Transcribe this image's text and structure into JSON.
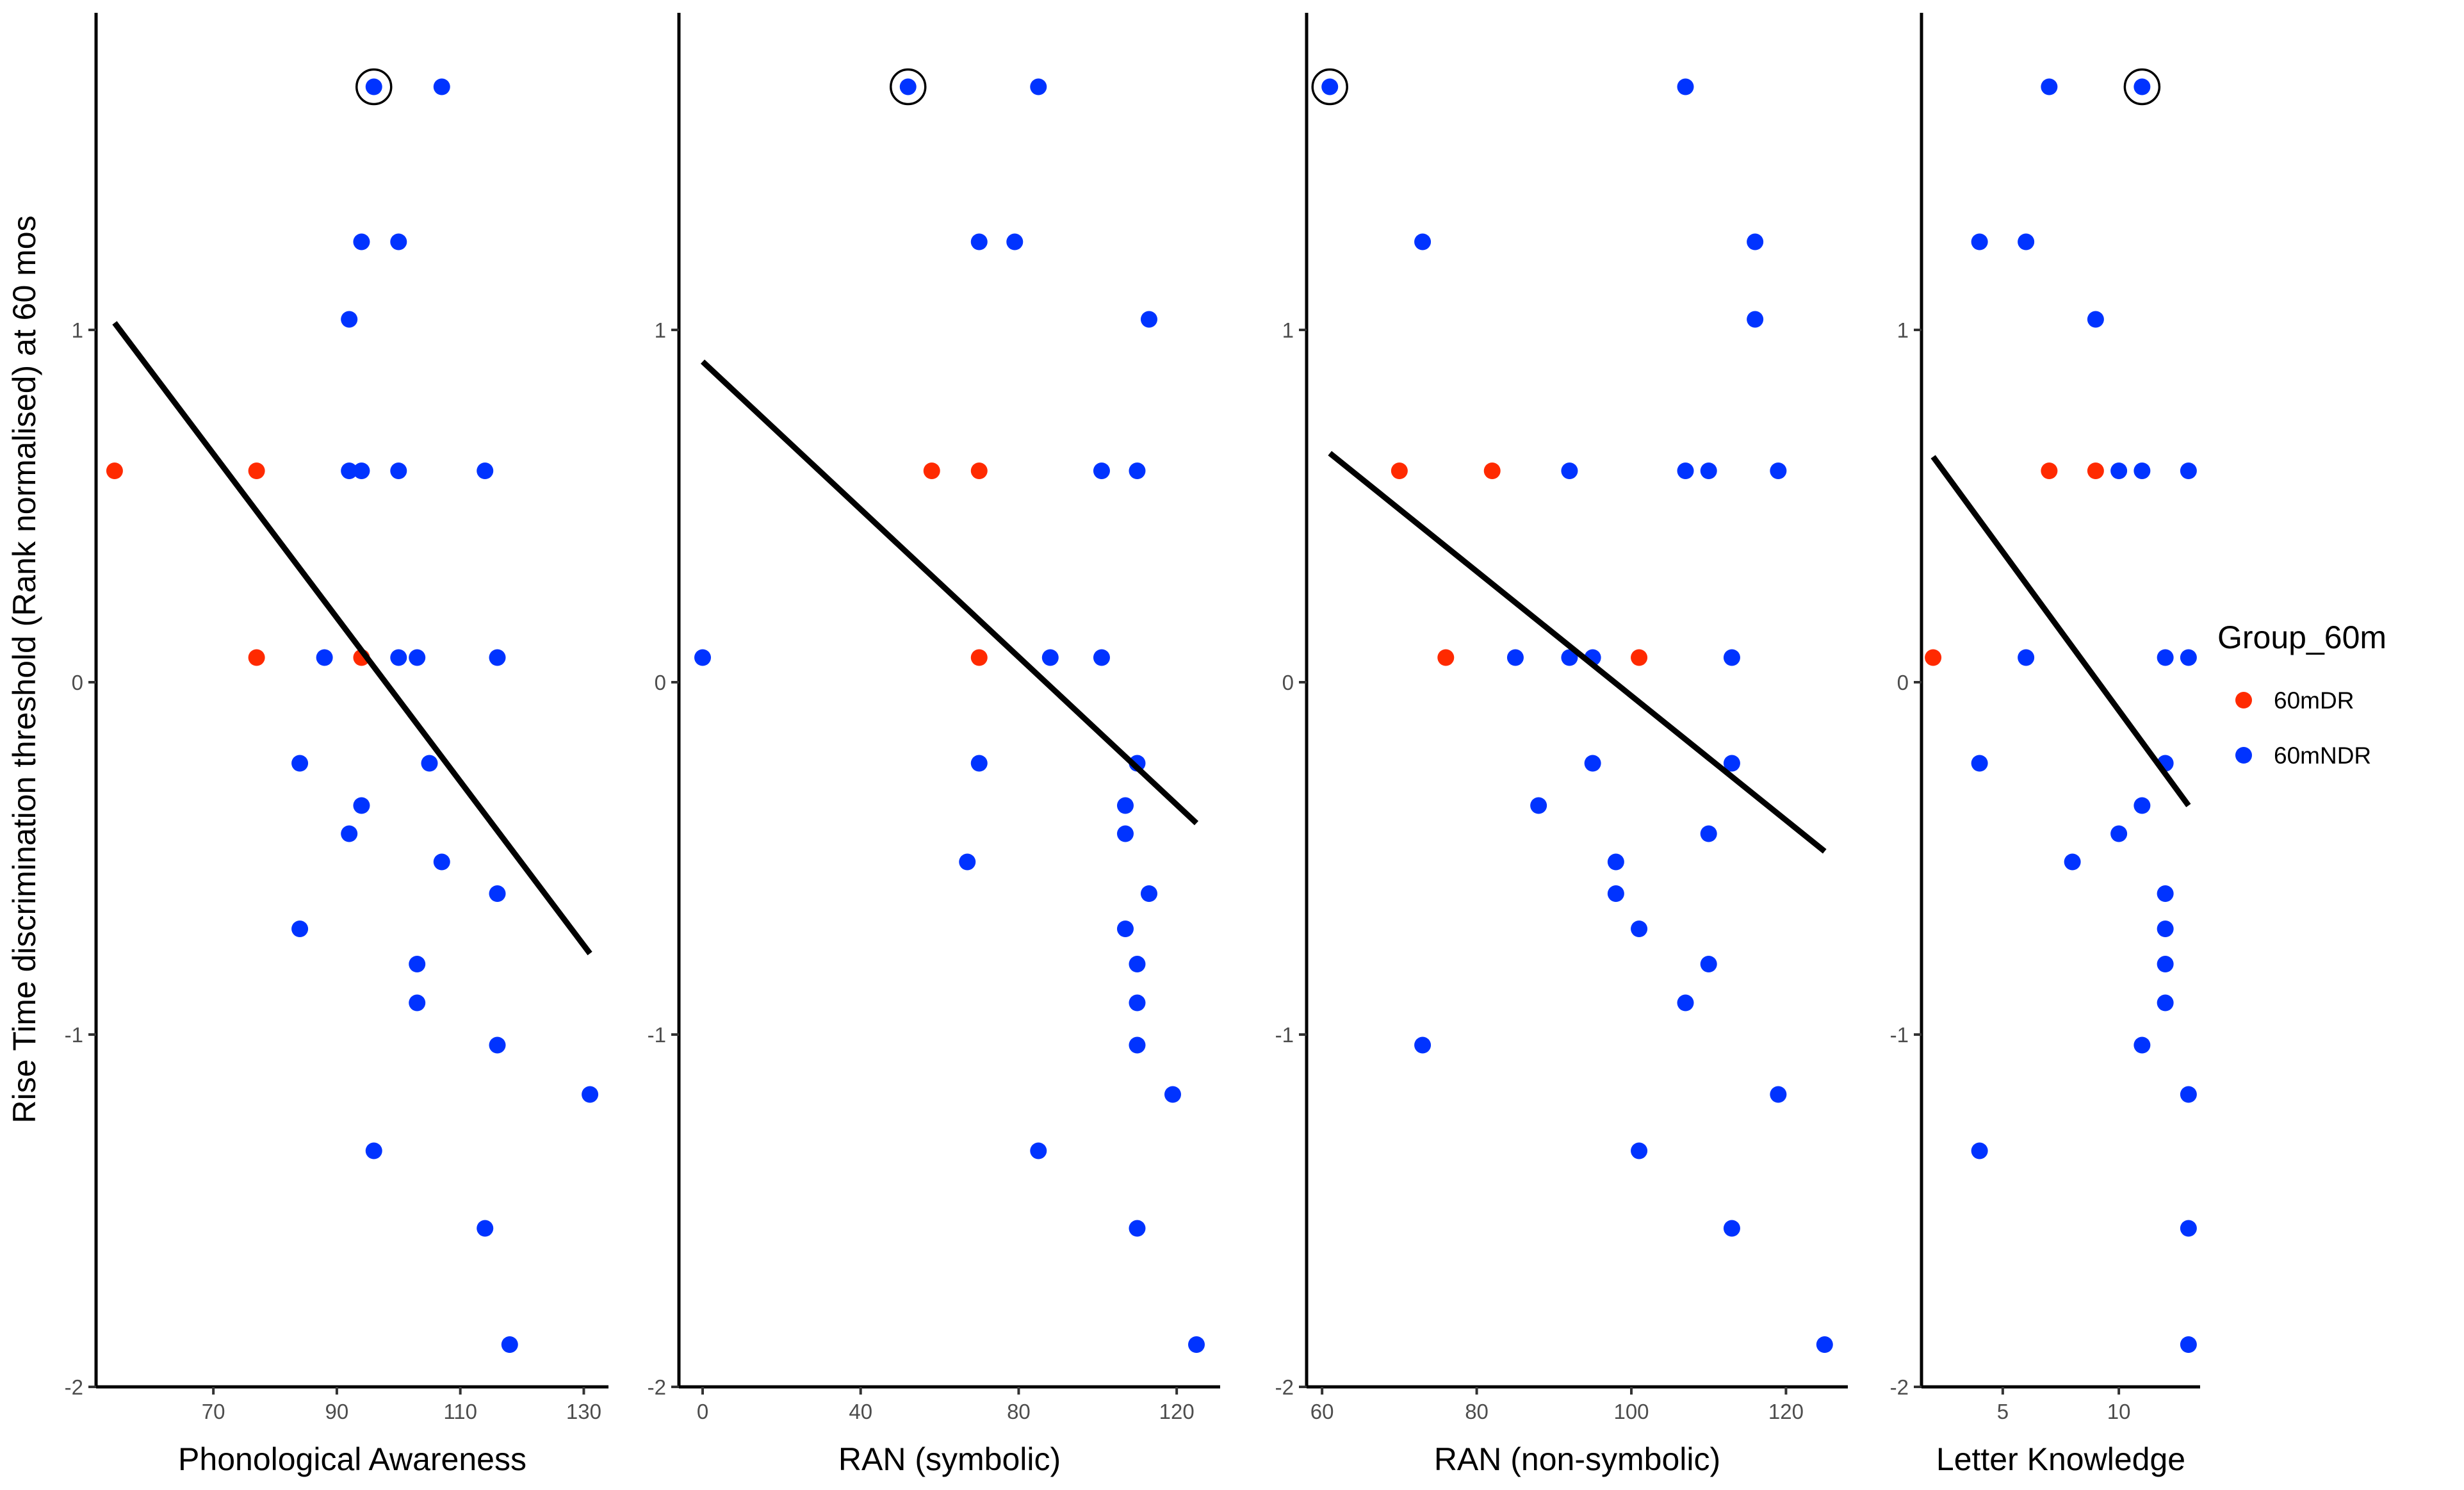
{
  "colors": {
    "60mDR": "#ff2a00",
    "60mNDR": "#0033ff",
    "axis": "#000000",
    "tick_text": "#4d4d4d"
  },
  "chart_data": {
    "type": "scatter",
    "ylabel": "Rise Time discrimination threshold (Rank normalised) at 60 mos",
    "legend": {
      "title": "Group_60m",
      "entries": [
        "60mDR",
        "60mNDR"
      ],
      "position": "right"
    },
    "ylim": [
      -2.0,
      1.9
    ],
    "yticks": [
      -2,
      -1,
      0,
      1
    ],
    "ytick_labels": [
      "-2",
      "-1",
      "0",
      "1"
    ],
    "panels": [
      {
        "xlabel": "Phonological Awareness",
        "xlim": [
          51,
          134
        ],
        "xticks": [
          70,
          90,
          110,
          130
        ],
        "xtick_labels": [
          "70",
          "90",
          "110",
          "130"
        ],
        "fit": {
          "x": [
            54,
            131
          ],
          "y": [
            1.02,
            -0.77
          ]
        },
        "highlight": {
          "x": 96,
          "y": 1.69
        },
        "points": [
          {
            "x": 54,
            "y": 0.6,
            "group": "60mDR"
          },
          {
            "x": 77,
            "y": 0.6,
            "group": "60mDR"
          },
          {
            "x": 77,
            "y": 0.07,
            "group": "60mDR"
          },
          {
            "x": 94,
            "y": 0.07,
            "group": "60mDR"
          },
          {
            "x": 96,
            "y": 1.69,
            "group": "60mNDR"
          },
          {
            "x": 107,
            "y": 1.69,
            "group": "60mNDR"
          },
          {
            "x": 94,
            "y": 1.25,
            "group": "60mNDR"
          },
          {
            "x": 100,
            "y": 1.25,
            "group": "60mNDR"
          },
          {
            "x": 92,
            "y": 1.03,
            "group": "60mNDR"
          },
          {
            "x": 92,
            "y": 0.6,
            "group": "60mNDR"
          },
          {
            "x": 94,
            "y": 0.6,
            "group": "60mNDR"
          },
          {
            "x": 100,
            "y": 0.6,
            "group": "60mNDR"
          },
          {
            "x": 114,
            "y": 0.6,
            "group": "60mNDR"
          },
          {
            "x": 88,
            "y": 0.07,
            "group": "60mNDR"
          },
          {
            "x": 100,
            "y": 0.07,
            "group": "60mNDR"
          },
          {
            "x": 103,
            "y": 0.07,
            "group": "60mNDR"
          },
          {
            "x": 116,
            "y": 0.07,
            "group": "60mNDR"
          },
          {
            "x": 84,
            "y": -0.23,
            "group": "60mNDR"
          },
          {
            "x": 105,
            "y": -0.23,
            "group": "60mNDR"
          },
          {
            "x": 94,
            "y": -0.35,
            "group": "60mNDR"
          },
          {
            "x": 92,
            "y": -0.43,
            "group": "60mNDR"
          },
          {
            "x": 107,
            "y": -0.51,
            "group": "60mNDR"
          },
          {
            "x": 116,
            "y": -0.6,
            "group": "60mNDR"
          },
          {
            "x": 84,
            "y": -0.7,
            "group": "60mNDR"
          },
          {
            "x": 103,
            "y": -0.8,
            "group": "60mNDR"
          },
          {
            "x": 103,
            "y": -0.91,
            "group": "60mNDR"
          },
          {
            "x": 116,
            "y": -1.03,
            "group": "60mNDR"
          },
          {
            "x": 131,
            "y": -1.17,
            "group": "60mNDR"
          },
          {
            "x": 96,
            "y": -1.33,
            "group": "60mNDR"
          },
          {
            "x": 114,
            "y": -1.55,
            "group": "60mNDR"
          },
          {
            "x": 118,
            "y": -1.88,
            "group": "60mNDR"
          }
        ]
      },
      {
        "xlabel": "RAN (symbolic)",
        "xlim": [
          -6,
          131
        ],
        "xticks": [
          0,
          40,
          80,
          120
        ],
        "xtick_labels": [
          "0",
          "40",
          "80",
          "120"
        ],
        "fit": {
          "x": [
            0,
            125
          ],
          "y": [
            0.91,
            -0.4
          ]
        },
        "highlight": {
          "x": 52,
          "y": 1.69
        },
        "points": [
          {
            "x": 58,
            "y": 0.6,
            "group": "60mDR"
          },
          {
            "x": 70,
            "y": 0.6,
            "group": "60mDR"
          },
          {
            "x": 70,
            "y": 0.07,
            "group": "60mDR"
          },
          {
            "x": 52,
            "y": 1.69,
            "group": "60mNDR"
          },
          {
            "x": 85,
            "y": 1.69,
            "group": "60mNDR"
          },
          {
            "x": 70,
            "y": 1.25,
            "group": "60mNDR"
          },
          {
            "x": 79,
            "y": 1.25,
            "group": "60mNDR"
          },
          {
            "x": 113,
            "y": 1.03,
            "group": "60mNDR"
          },
          {
            "x": 101,
            "y": 0.6,
            "group": "60mNDR"
          },
          {
            "x": 110,
            "y": 0.6,
            "group": "60mNDR"
          },
          {
            "x": 0,
            "y": 0.07,
            "group": "60mNDR"
          },
          {
            "x": 88,
            "y": 0.07,
            "group": "60mNDR"
          },
          {
            "x": 101,
            "y": 0.07,
            "group": "60mNDR"
          },
          {
            "x": 70,
            "y": -0.23,
            "group": "60mNDR"
          },
          {
            "x": 110,
            "y": -0.23,
            "group": "60mNDR"
          },
          {
            "x": 107,
            "y": -0.35,
            "group": "60mNDR"
          },
          {
            "x": 107,
            "y": -0.43,
            "group": "60mNDR"
          },
          {
            "x": 67,
            "y": -0.51,
            "group": "60mNDR"
          },
          {
            "x": 113,
            "y": -0.6,
            "group": "60mNDR"
          },
          {
            "x": 107,
            "y": -0.7,
            "group": "60mNDR"
          },
          {
            "x": 110,
            "y": -0.8,
            "group": "60mNDR"
          },
          {
            "x": 110,
            "y": -0.91,
            "group": "60mNDR"
          },
          {
            "x": 110,
            "y": -1.03,
            "group": "60mNDR"
          },
          {
            "x": 119,
            "y": -1.17,
            "group": "60mNDR"
          },
          {
            "x": 85,
            "y": -1.33,
            "group": "60mNDR"
          },
          {
            "x": 110,
            "y": -1.55,
            "group": "60mNDR"
          },
          {
            "x": 125,
            "y": -1.88,
            "group": "60mNDR"
          }
        ]
      },
      {
        "xlabel": "RAN (non-symbolic)",
        "xlim": [
          58,
          128
        ],
        "xticks": [
          60,
          80,
          100,
          120
        ],
        "xtick_labels": [
          "60",
          "80",
          "100",
          "120"
        ],
        "fit": {
          "x": [
            61,
            125
          ],
          "y": [
            0.65,
            -0.48
          ]
        },
        "highlight": {
          "x": 61,
          "y": 1.69
        },
        "points": [
          {
            "x": 70,
            "y": 0.6,
            "group": "60mDR"
          },
          {
            "x": 82,
            "y": 0.6,
            "group": "60mDR"
          },
          {
            "x": 76,
            "y": 0.07,
            "group": "60mDR"
          },
          {
            "x": 101,
            "y": 0.07,
            "group": "60mDR"
          },
          {
            "x": 61,
            "y": 1.69,
            "group": "60mNDR"
          },
          {
            "x": 107,
            "y": 1.69,
            "group": "60mNDR"
          },
          {
            "x": 73,
            "y": 1.25,
            "group": "60mNDR"
          },
          {
            "x": 116,
            "y": 1.25,
            "group": "60mNDR"
          },
          {
            "x": 116,
            "y": 1.03,
            "group": "60mNDR"
          },
          {
            "x": 92,
            "y": 0.6,
            "group": "60mNDR"
          },
          {
            "x": 107,
            "y": 0.6,
            "group": "60mNDR"
          },
          {
            "x": 110,
            "y": 0.6,
            "group": "60mNDR"
          },
          {
            "x": 119,
            "y": 0.6,
            "group": "60mNDR"
          },
          {
            "x": 85,
            "y": 0.07,
            "group": "60mNDR"
          },
          {
            "x": 92,
            "y": 0.07,
            "group": "60mNDR"
          },
          {
            "x": 95,
            "y": 0.07,
            "group": "60mNDR"
          },
          {
            "x": 113,
            "y": 0.07,
            "group": "60mNDR"
          },
          {
            "x": 95,
            "y": -0.23,
            "group": "60mNDR"
          },
          {
            "x": 113,
            "y": -0.23,
            "group": "60mNDR"
          },
          {
            "x": 88,
            "y": -0.35,
            "group": "60mNDR"
          },
          {
            "x": 110,
            "y": -0.43,
            "group": "60mNDR"
          },
          {
            "x": 98,
            "y": -0.51,
            "group": "60mNDR"
          },
          {
            "x": 98,
            "y": -0.6,
            "group": "60mNDR"
          },
          {
            "x": 101,
            "y": -0.7,
            "group": "60mNDR"
          },
          {
            "x": 110,
            "y": -0.8,
            "group": "60mNDR"
          },
          {
            "x": 107,
            "y": -0.91,
            "group": "60mNDR"
          },
          {
            "x": 73,
            "y": -1.03,
            "group": "60mNDR"
          },
          {
            "x": 119,
            "y": -1.17,
            "group": "60mNDR"
          },
          {
            "x": 101,
            "y": -1.33,
            "group": "60mNDR"
          },
          {
            "x": 113,
            "y": -1.55,
            "group": "60mNDR"
          },
          {
            "x": 125,
            "y": -1.88,
            "group": "60mNDR"
          }
        ]
      },
      {
        "xlabel": "Letter Knowledge",
        "xlim": [
          1.5,
          13.5
        ],
        "xticks": [
          5,
          10
        ],
        "xtick_labels": [
          "5",
          "10"
        ],
        "fit": {
          "x": [
            2,
            13
          ],
          "y": [
            0.64,
            -0.35
          ]
        },
        "highlight": {
          "x": 11,
          "y": 1.69
        },
        "points": [
          {
            "x": 2,
            "y": 0.07,
            "group": "60mDR"
          },
          {
            "x": 7,
            "y": 0.6,
            "group": "60mDR"
          },
          {
            "x": 9,
            "y": 0.6,
            "group": "60mDR"
          },
          {
            "x": 7,
            "y": 1.69,
            "group": "60mNDR"
          },
          {
            "x": 11,
            "y": 1.69,
            "group": "60mNDR"
          },
          {
            "x": 4,
            "y": 1.25,
            "group": "60mNDR"
          },
          {
            "x": 6,
            "y": 1.25,
            "group": "60mNDR"
          },
          {
            "x": 9,
            "y": 1.03,
            "group": "60mNDR"
          },
          {
            "x": 10,
            "y": 0.6,
            "group": "60mNDR"
          },
          {
            "x": 11,
            "y": 0.6,
            "group": "60mNDR"
          },
          {
            "x": 13,
            "y": 0.6,
            "group": "60mNDR"
          },
          {
            "x": 6,
            "y": 0.07,
            "group": "60mNDR"
          },
          {
            "x": 12,
            "y": 0.07,
            "group": "60mNDR"
          },
          {
            "x": 13,
            "y": 0.07,
            "group": "60mNDR"
          },
          {
            "x": 4,
            "y": -0.23,
            "group": "60mNDR"
          },
          {
            "x": 12,
            "y": -0.23,
            "group": "60mNDR"
          },
          {
            "x": 11,
            "y": -0.35,
            "group": "60mNDR"
          },
          {
            "x": 10,
            "y": -0.43,
            "group": "60mNDR"
          },
          {
            "x": 8,
            "y": -0.51,
            "group": "60mNDR"
          },
          {
            "x": 12,
            "y": -0.6,
            "group": "60mNDR"
          },
          {
            "x": 12,
            "y": -0.7,
            "group": "60mNDR"
          },
          {
            "x": 12,
            "y": -0.8,
            "group": "60mNDR"
          },
          {
            "x": 12,
            "y": -0.91,
            "group": "60mNDR"
          },
          {
            "x": 11,
            "y": -1.03,
            "group": "60mNDR"
          },
          {
            "x": 13,
            "y": -1.17,
            "group": "60mNDR"
          },
          {
            "x": 4,
            "y": -1.33,
            "group": "60mNDR"
          },
          {
            "x": 13,
            "y": -1.55,
            "group": "60mNDR"
          },
          {
            "x": 13,
            "y": -1.88,
            "group": "60mNDR"
          }
        ]
      }
    ]
  }
}
